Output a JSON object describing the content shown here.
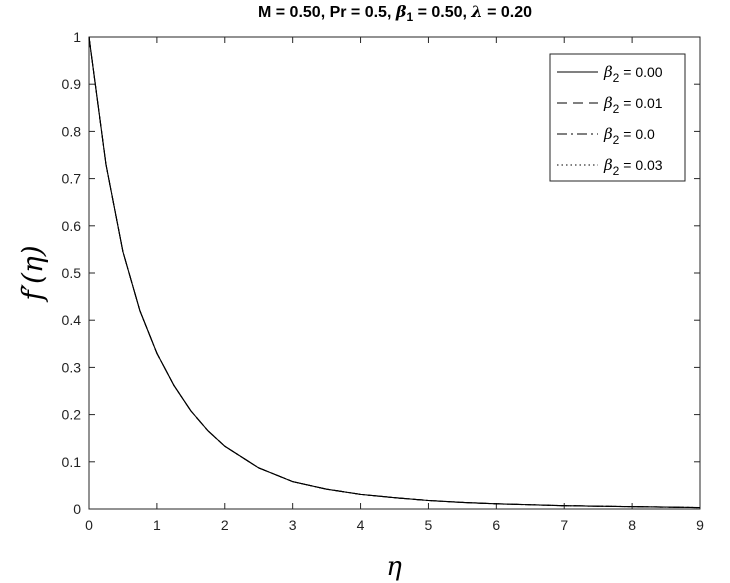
{
  "chart_data": {
    "type": "line",
    "title_parts": {
      "prefix": "M = 0.50, Pr = 0.5, ",
      "beta": "β",
      "beta_sub": "1",
      "mid": " = 0.50, ",
      "lambda": "λ",
      "suffix": " = 0.20"
    },
    "xlabel": "η",
    "ylabel": "f′(η)",
    "xlim": [
      0,
      9
    ],
    "ylim": [
      0,
      1
    ],
    "xticks": [
      "0",
      "1",
      "2",
      "3",
      "4",
      "5",
      "6",
      "7",
      "8",
      "9"
    ],
    "yticks": [
      "0",
      "0.1",
      "0.2",
      "0.3",
      "0.4",
      "0.5",
      "0.6",
      "0.7",
      "0.8",
      "0.9",
      "1"
    ],
    "legend_position": "top-right",
    "legend_symbol": "β",
    "legend_sub": "2",
    "x": [
      0,
      0.25,
      0.5,
      0.75,
      1,
      1.25,
      1.5,
      1.75,
      2,
      2.5,
      3,
      3.5,
      4,
      4.5,
      5,
      5.5,
      6,
      6.5,
      7,
      7.5,
      8,
      8.5,
      9
    ],
    "series": [
      {
        "name": " = 0.00",
        "style": "solid",
        "values": [
          1,
          0.73,
          0.545,
          0.42,
          0.33,
          0.262,
          0.208,
          0.166,
          0.133,
          0.087,
          0.058,
          0.042,
          0.031,
          0.024,
          0.018,
          0.014,
          0.011,
          0.009,
          0.007,
          0.006,
          0.005,
          0.004,
          0.003
        ]
      },
      {
        "name": " = 0.01",
        "style": "dashed",
        "values": [
          1,
          0.73,
          0.545,
          0.42,
          0.33,
          0.262,
          0.208,
          0.166,
          0.133,
          0.087,
          0.058,
          0.042,
          0.031,
          0.024,
          0.018,
          0.014,
          0.011,
          0.009,
          0.007,
          0.006,
          0.005,
          0.004,
          0.003
        ]
      },
      {
        "name": " = 0.0",
        "style": "dashdot",
        "values": [
          1,
          0.73,
          0.545,
          0.42,
          0.33,
          0.262,
          0.208,
          0.166,
          0.133,
          0.087,
          0.058,
          0.042,
          0.031,
          0.024,
          0.018,
          0.014,
          0.011,
          0.009,
          0.007,
          0.006,
          0.005,
          0.004,
          0.003
        ]
      },
      {
        "name": " = 0.03",
        "style": "dotted",
        "values": [
          1,
          0.73,
          0.545,
          0.42,
          0.33,
          0.262,
          0.208,
          0.166,
          0.133,
          0.087,
          0.058,
          0.042,
          0.031,
          0.024,
          0.018,
          0.014,
          0.011,
          0.009,
          0.007,
          0.006,
          0.005,
          0.004,
          0.003
        ]
      }
    ],
    "colors": {
      "line": "#000000",
      "axis": "#262626",
      "grid": "none"
    }
  }
}
